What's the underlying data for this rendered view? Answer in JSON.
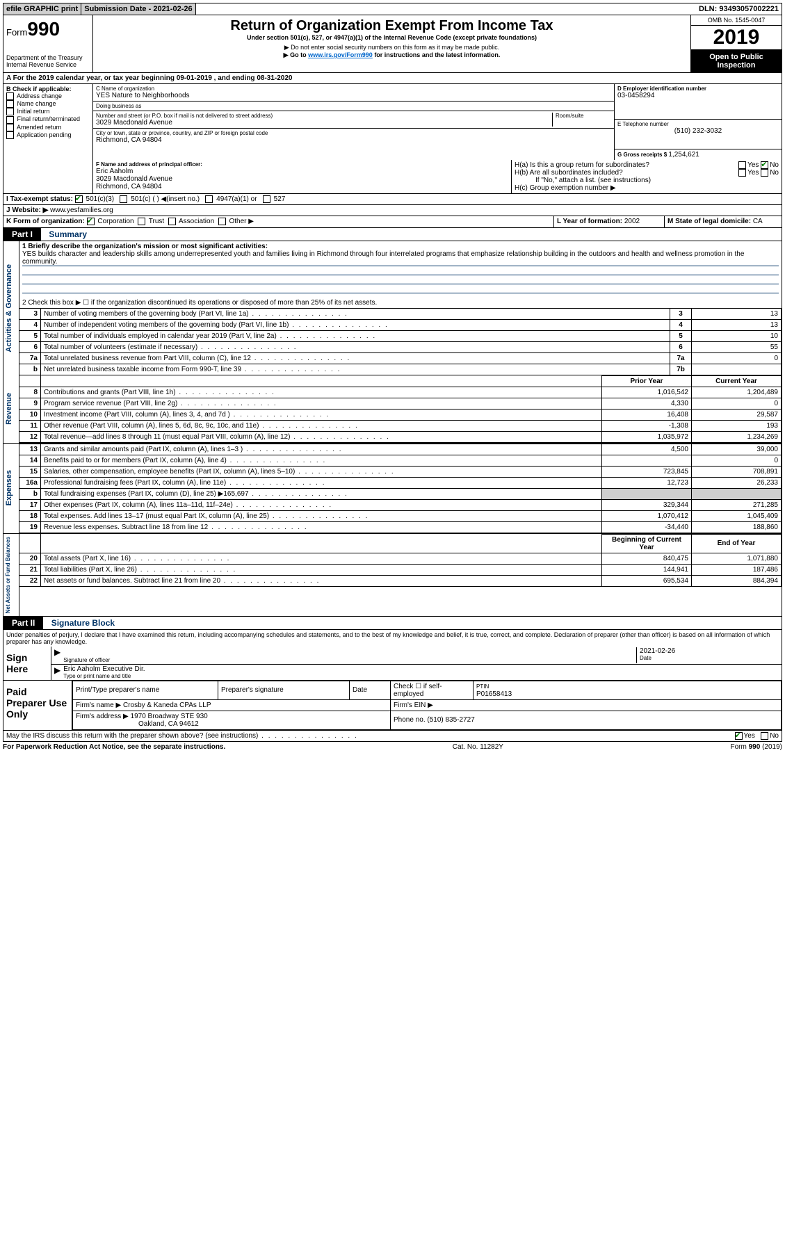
{
  "topbar": {
    "efile": "efile GRAPHIC print",
    "submission_label": "Submission Date - ",
    "submission_date": "2021-02-26",
    "dln_label": "DLN: ",
    "dln": "93493057002221"
  },
  "header": {
    "form_word": "Form",
    "form_num": "990",
    "dept": "Department of the Treasury\nInternal Revenue Service",
    "title": "Return of Organization Exempt From Income Tax",
    "subtitle": "Under section 501(c), 527, or 4947(a)(1) of the Internal Revenue Code (except private foundations)",
    "note1": "▶ Do not enter social security numbers on this form as it may be made public.",
    "note2_pre": "▶ Go to ",
    "note2_link": "www.irs.gov/Form990",
    "note2_post": " for instructions and the latest information.",
    "omb": "OMB No. 1545-0047",
    "year": "2019",
    "inspection": "Open to Public Inspection"
  },
  "period": {
    "line_a": "A For the 2019 calendar year, or tax year beginning 09-01-2019    , and ending 08-31-2020"
  },
  "box_b": {
    "label": "B Check if applicable:",
    "items": [
      "Address change",
      "Name change",
      "Initial return",
      "Final return/terminated",
      "Amended return",
      "Application pending"
    ]
  },
  "box_c": {
    "name_label": "C Name of organization",
    "name": "YES Nature to Neighborhoods",
    "dba_label": "Doing business as",
    "dba": "",
    "addr_label": "Number and street (or P.O. box if mail is not delivered to street address)",
    "room_label": "Room/suite",
    "addr": "3029 Macdonald Avenue",
    "city_label": "City or town, state or province, country, and ZIP or foreign postal code",
    "city": "Richmond, CA  94804"
  },
  "box_d": {
    "label": "D Employer identification number",
    "ein": "03-0458294"
  },
  "box_e": {
    "label": "E Telephone number",
    "phone": "(510) 232-3032"
  },
  "box_g": {
    "label": "G Gross receipts $ ",
    "amount": "1,254,621"
  },
  "box_f": {
    "label": "F  Name and address of principal officer:",
    "name": "Eric Aaholm",
    "addr1": "3029 Macdonald Avenue",
    "addr2": "Richmond, CA  94804"
  },
  "box_h": {
    "a_label": "H(a)  Is this a group return for subordinates?",
    "a_yes": "Yes",
    "a_no": "No",
    "b_label": "H(b)  Are all subordinates included?",
    "b_note": "If \"No,\" attach a list. (see instructions)",
    "c_label": "H(c)  Group exemption number ▶"
  },
  "box_i": {
    "label": "I  Tax-exempt status:",
    "opts": [
      "501(c)(3)",
      "501(c) (  ) ◀(insert no.)",
      "4947(a)(1) or",
      "527"
    ]
  },
  "box_j": {
    "label": "J  Website: ▶",
    "value": "www.yesfamilies.org"
  },
  "box_k": {
    "label": "K Form of organization:",
    "opts": [
      "Corporation",
      "Trust",
      "Association",
      "Other ▶"
    ]
  },
  "box_l": {
    "label": "L Year of formation: ",
    "value": "2002"
  },
  "box_m": {
    "label": "M State of legal domicile: ",
    "value": "CA"
  },
  "part1": {
    "label": "Part I",
    "title": "Summary",
    "line1_label": "1  Briefly describe the organization's mission or most significant activities:",
    "mission": "YES builds character and leadership skills among underrepresented youth and families living in Richmond through four interrelated programs that emphasize relationship building in the outdoors and health and wellness promotion in the community.",
    "line2": "2    Check this box ▶ ☐  if the organization discontinued its operations or disposed of more than 25% of its net assets."
  },
  "summary_rows": [
    {
      "n": "3",
      "d": "Number of voting members of the governing body (Part VI, line 1a)",
      "box": "3",
      "v": "13"
    },
    {
      "n": "4",
      "d": "Number of independent voting members of the governing body (Part VI, line 1b)",
      "box": "4",
      "v": "13"
    },
    {
      "n": "5",
      "d": "Total number of individuals employed in calendar year 2019 (Part V, line 2a)",
      "box": "5",
      "v": "10"
    },
    {
      "n": "6",
      "d": "Total number of volunteers (estimate if necessary)",
      "box": "6",
      "v": "55"
    },
    {
      "n": "7a",
      "d": "Total unrelated business revenue from Part VIII, column (C), line 12",
      "box": "7a",
      "v": "0"
    },
    {
      "n": "b",
      "d": "Net unrelated business taxable income from Form 990-T, line 39",
      "box": "7b",
      "v": ""
    }
  ],
  "two_col_header": {
    "prior": "Prior Year",
    "current": "Current Year"
  },
  "revenue_rows": [
    {
      "n": "8",
      "d": "Contributions and grants (Part VIII, line 1h)",
      "p": "1,016,542",
      "c": "1,204,489"
    },
    {
      "n": "9",
      "d": "Program service revenue (Part VIII, line 2g)",
      "p": "4,330",
      "c": "0"
    },
    {
      "n": "10",
      "d": "Investment income (Part VIII, column (A), lines 3, 4, and 7d )",
      "p": "16,408",
      "c": "29,587"
    },
    {
      "n": "11",
      "d": "Other revenue (Part VIII, column (A), lines 5, 6d, 8c, 9c, 10c, and 11e)",
      "p": "-1,308",
      "c": "193"
    },
    {
      "n": "12",
      "d": "Total revenue—add lines 8 through 11 (must equal Part VIII, column (A), line 12)",
      "p": "1,035,972",
      "c": "1,234,269"
    }
  ],
  "expense_rows": [
    {
      "n": "13",
      "d": "Grants and similar amounts paid (Part IX, column (A), lines 1–3 )",
      "p": "4,500",
      "c": "39,000"
    },
    {
      "n": "14",
      "d": "Benefits paid to or for members (Part IX, column (A), line 4)",
      "p": "",
      "c": "0"
    },
    {
      "n": "15",
      "d": "Salaries, other compensation, employee benefits (Part IX, column (A), lines 5–10)",
      "p": "723,845",
      "c": "708,891"
    },
    {
      "n": "16a",
      "d": "Professional fundraising fees (Part IX, column (A), line 11e)",
      "p": "12,723",
      "c": "26,233"
    },
    {
      "n": "b",
      "d": "Total fundraising expenses (Part IX, column (D), line 25) ▶165,697",
      "p": "BLANK",
      "c": "BLANK"
    },
    {
      "n": "17",
      "d": "Other expenses (Part IX, column (A), lines 11a–11d, 11f–24e)",
      "p": "329,344",
      "c": "271,285"
    },
    {
      "n": "18",
      "d": "Total expenses. Add lines 13–17 (must equal Part IX, column (A), line 25)",
      "p": "1,070,412",
      "c": "1,045,409"
    },
    {
      "n": "19",
      "d": "Revenue less expenses. Subtract line 18 from line 12",
      "p": "-34,440",
      "c": "188,860"
    }
  ],
  "net_header": {
    "begin": "Beginning of Current Year",
    "end": "End of Year"
  },
  "net_rows": [
    {
      "n": "20",
      "d": "Total assets (Part X, line 16)",
      "p": "840,475",
      "c": "1,071,880"
    },
    {
      "n": "21",
      "d": "Total liabilities (Part X, line 26)",
      "p": "144,941",
      "c": "187,486"
    },
    {
      "n": "22",
      "d": "Net assets or fund balances. Subtract line 21 from line 20",
      "p": "695,534",
      "c": "884,394"
    }
  ],
  "side_labels": {
    "gov": "Activities & Governance",
    "rev": "Revenue",
    "exp": "Expenses",
    "net": "Net Assets or Fund Balances"
  },
  "part2": {
    "label": "Part II",
    "title": "Signature Block",
    "decl": "Under penalties of perjury, I declare that I have examined this return, including accompanying schedules and statements, and to the best of my knowledge and belief, it is true, correct, and complete. Declaration of preparer (other than officer) is based on all information of which preparer has any knowledge."
  },
  "sign": {
    "here": "Sign Here",
    "sig_officer": "Signature of officer",
    "date_label": "Date",
    "date": "2021-02-26",
    "name_title": "Eric Aaholm  Executive Dir.",
    "type_label": "Type or print name and title"
  },
  "paid": {
    "label": "Paid Preparer Use Only",
    "print_label": "Print/Type preparer's name",
    "prep_sig": "Preparer's signature",
    "date": "Date",
    "check_label": "Check ☐ if self-employed",
    "ptin_label": "PTIN",
    "ptin": "P01658413",
    "firm_name_label": "Firm's name    ▶",
    "firm_name": "Crosby & Kaneda CPAs LLP",
    "firm_ein_label": "Firm's EIN ▶",
    "firm_addr_label": "Firm's address ▶",
    "firm_addr1": "1970 Broadway STE 930",
    "firm_addr2": "Oakland, CA  94612",
    "phone_label": "Phone no. ",
    "phone": "(510) 835-2727"
  },
  "discuss": {
    "q": "May the IRS discuss this return with the preparer shown above? (see instructions)",
    "yes": "Yes",
    "no": "No"
  },
  "footer": {
    "left": "For Paperwork Reduction Act Notice, see the separate instructions.",
    "mid": "Cat. No. 11282Y",
    "right": "Form 990 (2019)"
  }
}
